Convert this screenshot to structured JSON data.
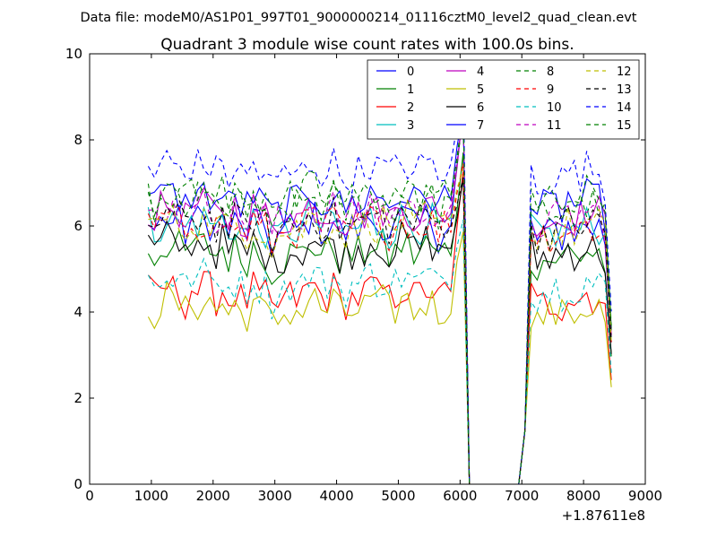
{
  "chart_data": {
    "type": "line",
    "suptitle": "Data file: modeM0/AS1P01_997T01_9000000214_01116cztM0_level2_quad_clean.evt",
    "title": "Quadrant 3 module wise count rates with 100.0s bins.",
    "xlabel": "",
    "ylabel": "",
    "x_offset_label": "+1.87611e8",
    "xlim": [
      0,
      9000
    ],
    "ylim": [
      0,
      10
    ],
    "x_ticks": [
      0,
      1000,
      2000,
      3000,
      4000,
      5000,
      6000,
      7000,
      8000,
      9000
    ],
    "y_ticks": [
      0,
      2,
      4,
      6,
      8,
      10
    ],
    "legend_position": "top-right",
    "series_style": {
      "colors": [
        "#0000ff",
        "#008000",
        "#ff0000",
        "#00bfbf",
        "#bf00bf",
        "#bfbf00",
        "#000000",
        "#0000ff",
        "#008000",
        "#ff0000",
        "#00bfbf",
        "#bf00bf",
        "#bfbf00",
        "#000000",
        "#0000ff",
        "#008000"
      ],
      "dashed": [
        false,
        false,
        false,
        false,
        false,
        false,
        false,
        false,
        true,
        true,
        true,
        true,
        true,
        true,
        true,
        true
      ]
    },
    "time_bins": {
      "start": 950,
      "step": 100,
      "count": 76
    },
    "profile": {
      "on1_start": 950,
      "on1_end": 6050,
      "gap_start": 6100,
      "gap_end": 6950,
      "recover": [
        [
          7000,
          0.42
        ],
        [
          7050,
          1.25
        ]
      ],
      "on2_start": 7100,
      "on2_end": 8350,
      "final": [
        8400,
        0.55
      ]
    },
    "series": [
      {
        "name": "0",
        "base": 6.0,
        "end_peak": 8.7
      },
      {
        "name": "1",
        "base": 5.4,
        "end_peak": 7.6
      },
      {
        "name": "2",
        "base": 4.4,
        "end_peak": 7.4
      },
      {
        "name": "3",
        "base": 6.0,
        "end_peak": 8.6
      },
      {
        "name": "4",
        "base": 6.3,
        "end_peak": 8.6
      },
      {
        "name": "5",
        "base": 4.1,
        "end_peak": 6.0
      },
      {
        "name": "6",
        "base": 5.5,
        "end_peak": 7.0
      },
      {
        "name": "7",
        "base": 6.6,
        "end_peak": 8.9
      },
      {
        "name": "8",
        "base": 6.5,
        "end_peak": 8.6
      },
      {
        "name": "9",
        "base": 6.0,
        "end_peak": 7.5
      },
      {
        "name": "10",
        "base": 4.7,
        "end_peak": 6.3
      },
      {
        "name": "11",
        "base": 6.3,
        "end_peak": 8.5
      },
      {
        "name": "12",
        "base": 6.0,
        "end_peak": 7.5
      },
      {
        "name": "13",
        "base": 6.1,
        "end_peak": 7.0
      },
      {
        "name": "14",
        "base": 7.3,
        "end_peak": 9.4
      },
      {
        "name": "15",
        "base": 6.7,
        "end_peak": 8.8
      }
    ]
  }
}
